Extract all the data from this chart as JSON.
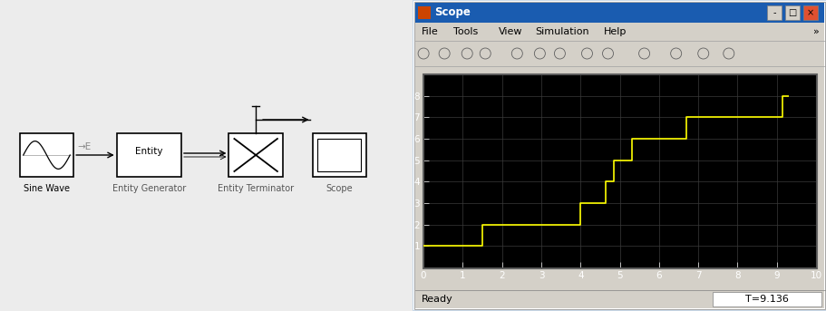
{
  "scope_title": "Scope",
  "scope_bg": "#000000",
  "plot_line_color": "#ffff00",
  "plot_xlim": [
    0,
    10
  ],
  "plot_ylim": [
    0,
    9
  ],
  "plot_xticks": [
    0,
    1,
    2,
    3,
    4,
    5,
    6,
    7,
    8,
    9,
    10
  ],
  "plot_ytick_vals": [
    1,
    2,
    3,
    4,
    5,
    6,
    7,
    8
  ],
  "grid_color": "#3a3a3a",
  "status_left": "Ready",
  "status_right": "T=9.136",
  "staircase_x": [
    0,
    1.5,
    1.5,
    4.0,
    4.0,
    4.65,
    4.65,
    4.85,
    4.85,
    5.3,
    5.3,
    6.7,
    6.7,
    9.15,
    9.15,
    9.3
  ],
  "staircase_y": [
    1,
    1,
    2,
    2,
    3,
    3,
    4,
    4,
    5,
    5,
    6,
    6,
    7,
    7,
    8,
    8
  ],
  "simulink_bg": "#ececec",
  "menu_items": [
    "File",
    "Tools",
    "View",
    "Simulation",
    "Help"
  ],
  "block_sine_label": "Sine Wave",
  "block_gen_label": "Entity Generator",
  "block_term_label": "Entity Terminator",
  "block_scope_label": "Scope",
  "win_bg": "#d4d0c8",
  "win_title_bg": "#0a246a",
  "win_border": "#808080",
  "toolbar_bg": "#d4d0c8",
  "plot_area_border": "#7a7a7a"
}
